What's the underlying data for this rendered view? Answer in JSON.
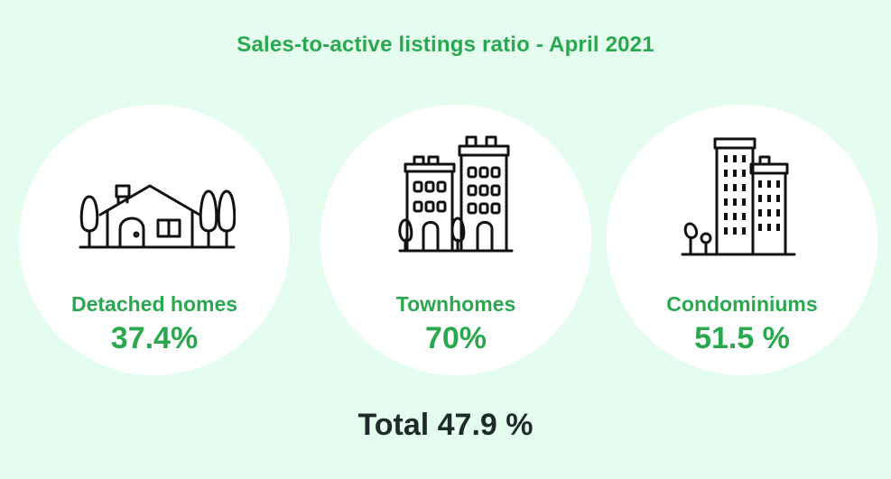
{
  "title": "Sales-to-active listings ratio - April 2021",
  "categories": [
    {
      "label": "Detached homes",
      "value": "37.4%",
      "icon": "house-icon"
    },
    {
      "label": "Townhomes",
      "value": "70%",
      "icon": "townhouse-icon"
    },
    {
      "label": "Condominiums",
      "value": "51.5 %",
      "icon": "condo-building-icon"
    }
  ],
  "total": "Total 47.9 %",
  "colors": {
    "background": "#e5fdee",
    "accent": "#2aa850",
    "total_text": "#1f2a2a",
    "circle": "#ffffff",
    "icon_stroke": "#111111"
  }
}
